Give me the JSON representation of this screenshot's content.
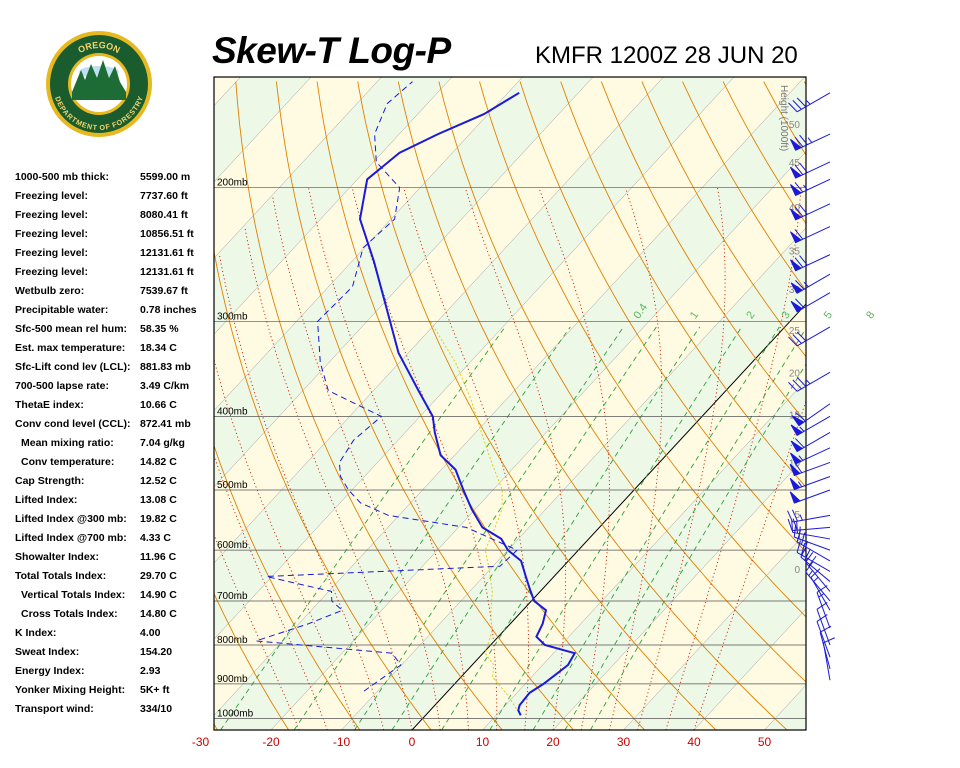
{
  "header": {
    "title": "Skew-T Log-P",
    "station": "KMFR 1200Z 28 JUN 20"
  },
  "logo": {
    "top_text": "OREGON",
    "bottom_text": "DEPARTMENT OF FORESTRY",
    "colors": {
      "ring": "#1a5c2e",
      "gold": "#e8b820",
      "tree": "#1d6b35"
    }
  },
  "stats": [
    {
      "label": "1000-500 mb thick:",
      "value": "5599.00 m",
      "indent": 0
    },
    {
      "label": "Freezing level:",
      "value": "7737.60 ft",
      "indent": 0
    },
    {
      "label": "Freezing level:",
      "value": "8080.41 ft",
      "indent": 0
    },
    {
      "label": "Freezing level:",
      "value": "10856.51 ft",
      "indent": 0
    },
    {
      "label": "Freezing level:",
      "value": "12131.61 ft",
      "indent": 0
    },
    {
      "label": "Freezing level:",
      "value": "12131.61 ft",
      "indent": 0
    },
    {
      "label": "Wetbulb zero:",
      "value": "7539.67 ft",
      "indent": 0
    },
    {
      "label": "Precipitable water:",
      "value": "0.78 inches",
      "indent": 0
    },
    {
      "label": "Sfc-500 mean rel hum:",
      "value": "58.35 %",
      "indent": 0
    },
    {
      "label": "Est. max temperature:",
      "value": "18.34 C",
      "indent": 0
    },
    {
      "label": "Sfc-Lift cond lev (LCL):",
      "value": "881.83 mb",
      "indent": 0
    },
    {
      "label": "700-500 lapse rate:",
      "value": "3.49 C/km",
      "indent": 0
    },
    {
      "label": "ThetaE index:",
      "value": "10.66 C",
      "indent": 0
    },
    {
      "label": "Conv cond level (CCL):",
      "value": "872.41 mb",
      "indent": 0
    },
    {
      "label": "Mean mixing ratio:",
      "value": "7.04 g/kg",
      "indent": 1
    },
    {
      "label": "Conv temperature:",
      "value": "14.82 C",
      "indent": 1
    },
    {
      "label": "Cap Strength:",
      "value": "12.52 C",
      "indent": 0
    },
    {
      "label": "Lifted Index:",
      "value": "13.08 C",
      "indent": 0
    },
    {
      "label": "Lifted Index @300 mb:",
      "value": "19.82 C",
      "indent": 0
    },
    {
      "label": "Lifted Index @700 mb:",
      "value": "4.33 C",
      "indent": 0
    },
    {
      "label": "Showalter Index:",
      "value": "11.96 C",
      "indent": 0
    },
    {
      "label": "Total Totals Index:",
      "value": "29.70 C",
      "indent": 0
    },
    {
      "label": "Vertical Totals Index:",
      "value": "14.90 C",
      "indent": 1
    },
    {
      "label": "Cross Totals Index:",
      "value": "14.80 C",
      "indent": 1
    },
    {
      "label": "K Index:",
      "value": "4.00",
      "indent": 0
    },
    {
      "label": "Sweat Index:",
      "value": "154.20",
      "indent": 0
    },
    {
      "label": "Energy Index:",
      "value": "2.93",
      "indent": 0
    },
    {
      "label": "Yonker Mixing Height:",
      "value": "5K+ ft",
      "indent": 0
    },
    {
      "label": "Transport wind:",
      "value": "334/10",
      "indent": 0
    }
  ],
  "chart_data": {
    "type": "line",
    "x_ticks": [
      "-30",
      "-20",
      "-10",
      "0",
      "10",
      "20",
      "30",
      "40",
      "50"
    ],
    "xlim": [
      -30,
      55
    ],
    "pressure_levels": [
      {
        "p": 200,
        "label": "200mb"
      },
      {
        "p": 300,
        "label": "300mb"
      },
      {
        "p": 400,
        "label": "400mb"
      },
      {
        "p": 500,
        "label": "500mb"
      },
      {
        "p": 600,
        "label": "600mb"
      },
      {
        "p": 700,
        "label": "700mb"
      },
      {
        "p": 800,
        "label": "800mb"
      },
      {
        "p": 900,
        "label": "900mb"
      },
      {
        "p": 1000,
        "label": "1000mb"
      }
    ],
    "plim": [
      143,
      1035
    ],
    "height_axis_label": "Height (1000ft)",
    "height_ticks": [
      {
        "label": "50",
        "p": 165
      },
      {
        "label": "45",
        "p": 185
      },
      {
        "label": "40",
        "p": 212
      },
      {
        "label": "35",
        "p": 242
      },
      {
        "label": "30",
        "p": 272
      },
      {
        "label": "25",
        "p": 308
      },
      {
        "label": "20",
        "p": 350
      },
      {
        "label": "15",
        "p": 398
      },
      {
        "label": "10",
        "p": 460
      },
      {
        "label": "5",
        "p": 538
      },
      {
        "label": "0",
        "p": 635
      }
    ],
    "mixing_ratio_labels": [
      {
        "label": "0.4",
        "t": -22
      },
      {
        "label": "1",
        "t": -14
      },
      {
        "label": "2",
        "t": -6
      },
      {
        "label": "3",
        "t": -1
      },
      {
        "label": "5",
        "t": 5
      },
      {
        "label": "8",
        "t": 11
      }
    ],
    "temperature": {
      "p": [
        990,
        975,
        960,
        925,
        900,
        870,
        850,
        820,
        800,
        780,
        750,
        720,
        700,
        675,
        650,
        620,
        600,
        580,
        560,
        530,
        500,
        470,
        450,
        420,
        400,
        370,
        330,
        290,
        250,
        220,
        195,
        180,
        170,
        160,
        150
      ],
      "t": [
        13.5,
        12.5,
        12.0,
        11.8,
        12.6,
        13.2,
        13.6,
        13.0,
        7.7,
        5.4,
        4.6,
        3.3,
        0.4,
        -1.8,
        -4.0,
        -6.7,
        -10.0,
        -12.4,
        -16.6,
        -20.5,
        -24.2,
        -28.0,
        -32.0,
        -35.8,
        -38.2,
        -43.6,
        -51.4,
        -58.6,
        -66.9,
        -74.4,
        -78.6,
        -77.5,
        -74.5,
        -70.6,
        -68.4
      ]
    },
    "dewpoint": {
      "p": [
        920,
        850,
        820,
        790,
        750,
        720,
        700,
        680,
        650,
        630,
        600,
        560,
        540,
        520,
        500,
        480,
        460,
        430,
        400,
        370,
        340,
        300,
        270,
        240,
        220,
        200,
        185,
        170,
        155,
        145
      ],
      "t": [
        -11.9,
        -10.1,
        -12.9,
        -33.8,
        -28.6,
        -25.6,
        -28.3,
        -29.6,
        -40.8,
        -9.0,
        -8.7,
        -18.9,
        -31.5,
        -37.1,
        -40.5,
        -43.4,
        -45.4,
        -46.3,
        -45.5,
        -56.4,
        -61.2,
        -67.0,
        -66.6,
        -70.2,
        -69.5,
        -72.9,
        -79.6,
        -83.5,
        -85.7,
        -85.0
      ]
    },
    "parcel": {
      "p": [
        990,
        930,
        882,
        850,
        820,
        800,
        770,
        720,
        680,
        640,
        600,
        560,
        530,
        500,
        460,
        420,
        380,
        340,
        300
      ],
      "t": [
        13.5,
        8.9,
        4.5,
        3.1,
        0.3,
        -0.4,
        -1.5,
        -4.5,
        -6.8,
        -9.8,
        -13.2,
        -14.8,
        -16.2,
        -18.7,
        -23.8,
        -29.2,
        -35.0,
        -42.0,
        -51.0
      ]
    },
    "winds": [
      {
        "p": 150,
        "dir": 240,
        "spd": 35
      },
      {
        "p": 170,
        "dir": 245,
        "spd": 75
      },
      {
        "p": 185,
        "dir": 245,
        "spd": 70
      },
      {
        "p": 195,
        "dir": 245,
        "spd": 65
      },
      {
        "p": 210,
        "dir": 245,
        "spd": 70
      },
      {
        "p": 225,
        "dir": 245,
        "spd": 60
      },
      {
        "p": 245,
        "dir": 245,
        "spd": 70
      },
      {
        "p": 260,
        "dir": 240,
        "spd": 65
      },
      {
        "p": 275,
        "dir": 240,
        "spd": 60
      },
      {
        "p": 305,
        "dir": 240,
        "spd": 30
      },
      {
        "p": 350,
        "dir": 240,
        "spd": 35
      },
      {
        "p": 385,
        "dir": 235,
        "spd": 60
      },
      {
        "p": 400,
        "dir": 240,
        "spd": 55
      },
      {
        "p": 420,
        "dir": 240,
        "spd": 60
      },
      {
        "p": 440,
        "dir": 245,
        "spd": 55
      },
      {
        "p": 460,
        "dir": 250,
        "spd": 60
      },
      {
        "p": 480,
        "dir": 250,
        "spd": 55
      },
      {
        "p": 500,
        "dir": 250,
        "spd": 50
      },
      {
        "p": 540,
        "dir": 260,
        "spd": 25
      },
      {
        "p": 560,
        "dir": 265,
        "spd": 20
      },
      {
        "p": 580,
        "dir": 280,
        "spd": 20
      },
      {
        "p": 600,
        "dir": 290,
        "spd": 20
      },
      {
        "p": 620,
        "dir": 300,
        "spd": 25
      },
      {
        "p": 640,
        "dir": 300,
        "spd": 20
      },
      {
        "p": 660,
        "dir": 310,
        "spd": 20
      },
      {
        "p": 680,
        "dir": 320,
        "spd": 20
      },
      {
        "p": 700,
        "dir": 320,
        "spd": 15
      },
      {
        "p": 720,
        "dir": 330,
        "spd": 15
      },
      {
        "p": 760,
        "dir": 340,
        "spd": 15
      },
      {
        "p": 800,
        "dir": 340,
        "spd": 10
      },
      {
        "p": 830,
        "dir": 340,
        "spd": 10
      },
      {
        "p": 860,
        "dir": 345,
        "spd": 10
      },
      {
        "p": 890,
        "dir": 350,
        "spd": 10
      }
    ],
    "colors": {
      "temperature": "#1a1ad8",
      "dewpoint": "#1a1ad8",
      "parcel": "#e0d000",
      "dry_adiabat": "#e08000",
      "moist_adiabat": "#cc2200",
      "mixing_ratio": "#2aa03a",
      "isotherm": "#333333",
      "zero_isotherm": "#000000",
      "band_yellow": "#fffbe2",
      "band_green": "#eef8e6",
      "tick_label": "#cc0000",
      "wind": "#1a1ad8"
    },
    "grid": true
  }
}
